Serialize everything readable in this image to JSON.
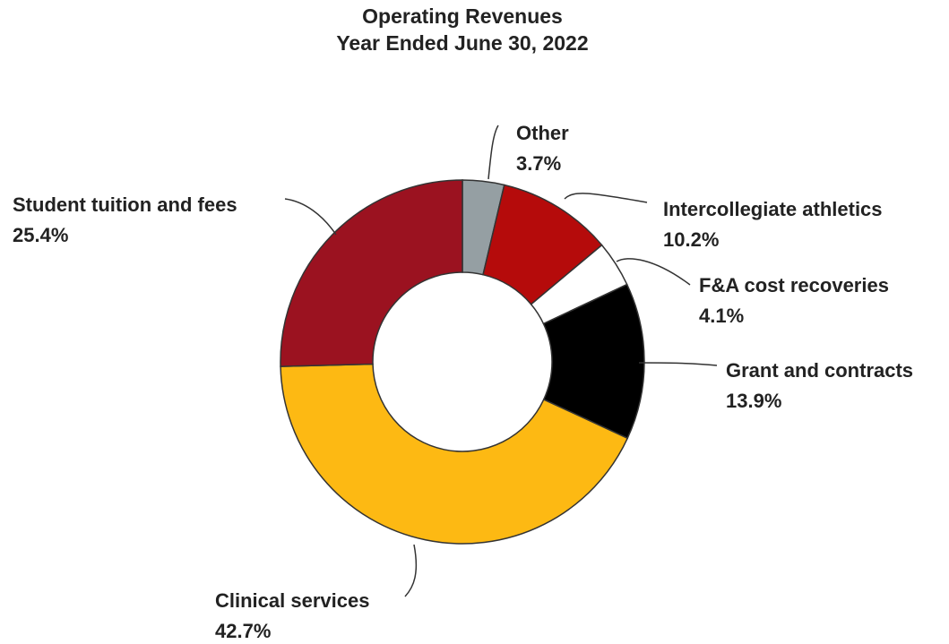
{
  "chart_data": {
    "type": "donut",
    "title": "Operating Revenues",
    "subtitle": "Year Ended June 30, 2022",
    "categories": [
      "Other",
      "Intercollegiate athletics",
      "F&A cost recoveries",
      "Grant and contracts",
      "Clinical services",
      "Student tuition and fees"
    ],
    "values": [
      3.7,
      10.2,
      4.1,
      13.9,
      42.7,
      25.4
    ],
    "value_labels": [
      "3.7%",
      "10.2%",
      "4.1%",
      "13.9%",
      "42.7%",
      "25.4%"
    ],
    "colors": [
      "#959fa3",
      "#b50b0b",
      "#ffffff",
      "#000000",
      "#fdb913",
      "#9b1220"
    ]
  }
}
